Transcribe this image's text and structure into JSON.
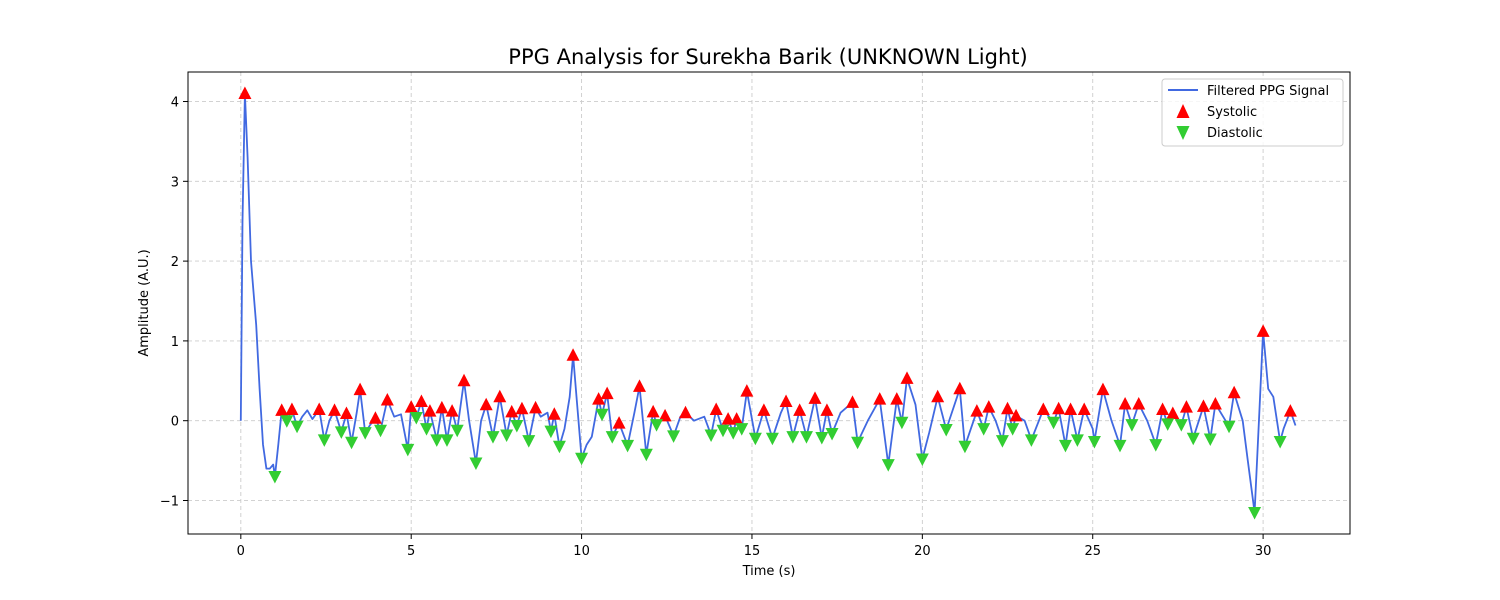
{
  "chart_data": {
    "type": "line",
    "title": "PPG Analysis for Surekha Barik (UNKNOWN Light)",
    "xlabel": "Time (s)",
    "ylabel": "Amplitude (A.U.)",
    "xlim": [
      -1.55,
      32.55
    ],
    "ylim": [
      -1.42,
      4.37
    ],
    "xticks": [
      0,
      5,
      10,
      15,
      20,
      25,
      30
    ],
    "yticks": [
      -1,
      0,
      1,
      2,
      3,
      4
    ],
    "ytick_labels": [
      "−1",
      "0",
      "1",
      "2",
      "3",
      "4"
    ],
    "grid": true,
    "legend_position": "top-right",
    "colors": {
      "signal": "#4169e1",
      "systolic": "#ff0000",
      "diastolic": "#32cd32",
      "grid": "#cccccc"
    },
    "series": [
      {
        "name": "Filtered PPG Signal",
        "kind": "line",
        "points": [
          [
            0.0,
            0.0
          ],
          [
            0.05,
            2.5
          ],
          [
            0.12,
            4.1
          ],
          [
            0.2,
            3.3
          ],
          [
            0.3,
            2.0
          ],
          [
            0.45,
            1.2
          ],
          [
            0.55,
            0.4
          ],
          [
            0.65,
            -0.3
          ],
          [
            0.75,
            -0.6
          ],
          [
            0.85,
            -0.6
          ],
          [
            0.95,
            -0.55
          ],
          [
            1.0,
            -0.7
          ],
          [
            1.1,
            -0.3
          ],
          [
            1.2,
            0.13
          ],
          [
            1.35,
            0.0
          ],
          [
            1.5,
            0.14
          ],
          [
            1.65,
            -0.07
          ],
          [
            1.8,
            0.05
          ],
          [
            1.95,
            0.13
          ],
          [
            2.1,
            0.02
          ],
          [
            2.3,
            0.14
          ],
          [
            2.45,
            -0.24
          ],
          [
            2.6,
            0.0
          ],
          [
            2.75,
            0.13
          ],
          [
            2.95,
            -0.14
          ],
          [
            3.1,
            0.09
          ],
          [
            3.25,
            -0.27
          ],
          [
            3.4,
            0.1
          ],
          [
            3.5,
            0.39
          ],
          [
            3.65,
            -0.15
          ],
          [
            3.8,
            -0.05
          ],
          [
            3.95,
            0.03
          ],
          [
            4.1,
            -0.12
          ],
          [
            4.3,
            0.26
          ],
          [
            4.5,
            0.05
          ],
          [
            4.7,
            0.08
          ],
          [
            4.9,
            -0.36
          ],
          [
            5.0,
            0.17
          ],
          [
            5.15,
            0.04
          ],
          [
            5.3,
            0.24
          ],
          [
            5.45,
            -0.1
          ],
          [
            5.55,
            0.12
          ],
          [
            5.75,
            -0.24
          ],
          [
            5.9,
            0.16
          ],
          [
            6.05,
            -0.24
          ],
          [
            6.2,
            0.12
          ],
          [
            6.35,
            -0.12
          ],
          [
            6.55,
            0.5
          ],
          [
            6.7,
            0.0
          ],
          [
            6.9,
            -0.53
          ],
          [
            7.05,
            0.0
          ],
          [
            7.2,
            0.2
          ],
          [
            7.4,
            -0.2
          ],
          [
            7.6,
            0.3
          ],
          [
            7.8,
            -0.18
          ],
          [
            7.95,
            0.11
          ],
          [
            8.1,
            -0.06
          ],
          [
            8.25,
            0.15
          ],
          [
            8.45,
            -0.25
          ],
          [
            8.65,
            0.16
          ],
          [
            8.8,
            0.05
          ],
          [
            9.0,
            0.1
          ],
          [
            9.1,
            -0.13
          ],
          [
            9.2,
            0.08
          ],
          [
            9.35,
            -0.32
          ],
          [
            9.5,
            -0.1
          ],
          [
            9.65,
            0.3
          ],
          [
            9.75,
            0.82
          ],
          [
            9.85,
            0.3
          ],
          [
            10.0,
            -0.47
          ],
          [
            10.15,
            -0.3
          ],
          [
            10.3,
            -0.2
          ],
          [
            10.5,
            0.27
          ],
          [
            10.6,
            0.08
          ],
          [
            10.75,
            0.34
          ],
          [
            10.9,
            -0.2
          ],
          [
            11.1,
            -0.03
          ],
          [
            11.35,
            -0.31
          ],
          [
            11.55,
            0.1
          ],
          [
            11.7,
            0.43
          ],
          [
            11.9,
            -0.42
          ],
          [
            12.1,
            0.11
          ],
          [
            12.2,
            -0.05
          ],
          [
            12.45,
            0.06
          ],
          [
            12.7,
            -0.19
          ],
          [
            12.9,
            0.05
          ],
          [
            13.05,
            0.1
          ],
          [
            13.3,
            0.0
          ],
          [
            13.6,
            0.05
          ],
          [
            13.8,
            -0.18
          ],
          [
            13.95,
            0.14
          ],
          [
            14.15,
            -0.12
          ],
          [
            14.3,
            0.02
          ],
          [
            14.45,
            -0.15
          ],
          [
            14.55,
            0.02
          ],
          [
            14.7,
            -0.1
          ],
          [
            14.85,
            0.37
          ],
          [
            15.1,
            -0.22
          ],
          [
            15.35,
            0.13
          ],
          [
            15.6,
            -0.22
          ],
          [
            15.85,
            0.1
          ],
          [
            16.0,
            0.24
          ],
          [
            16.2,
            -0.2
          ],
          [
            16.4,
            0.13
          ],
          [
            16.6,
            -0.2
          ],
          [
            16.85,
            0.28
          ],
          [
            17.05,
            -0.21
          ],
          [
            17.2,
            0.13
          ],
          [
            17.35,
            -0.16
          ],
          [
            17.6,
            0.1
          ],
          [
            17.95,
            0.23
          ],
          [
            18.1,
            -0.27
          ],
          [
            18.4,
            0.0
          ],
          [
            18.75,
            0.27
          ],
          [
            19.0,
            -0.55
          ],
          [
            19.25,
            0.27
          ],
          [
            19.4,
            -0.02
          ],
          [
            19.55,
            0.53
          ],
          [
            19.8,
            0.2
          ],
          [
            20.0,
            -0.48
          ],
          [
            20.2,
            -0.15
          ],
          [
            20.45,
            0.3
          ],
          [
            20.7,
            -0.11
          ],
          [
            21.1,
            0.4
          ],
          [
            21.25,
            -0.32
          ],
          [
            21.6,
            0.12
          ],
          [
            21.8,
            -0.1
          ],
          [
            21.95,
            0.17
          ],
          [
            22.15,
            0.0
          ],
          [
            22.35,
            -0.25
          ],
          [
            22.5,
            0.15
          ],
          [
            22.65,
            -0.1
          ],
          [
            22.75,
            0.06
          ],
          [
            23.0,
            0.0
          ],
          [
            23.2,
            -0.24
          ],
          [
            23.55,
            0.14
          ],
          [
            23.85,
            -0.02
          ],
          [
            24.0,
            0.15
          ],
          [
            24.2,
            -0.31
          ],
          [
            24.35,
            0.14
          ],
          [
            24.55,
            -0.24
          ],
          [
            24.75,
            0.14
          ],
          [
            25.0,
            -0.1
          ],
          [
            25.05,
            -0.26
          ],
          [
            25.3,
            0.39
          ],
          [
            25.55,
            0.0
          ],
          [
            25.8,
            -0.31
          ],
          [
            25.95,
            0.21
          ],
          [
            26.15,
            -0.05
          ],
          [
            26.35,
            0.21
          ],
          [
            26.6,
            0.0
          ],
          [
            26.85,
            -0.3
          ],
          [
            27.05,
            0.14
          ],
          [
            27.2,
            -0.04
          ],
          [
            27.35,
            0.09
          ],
          [
            27.6,
            -0.05
          ],
          [
            27.75,
            0.17
          ],
          [
            27.95,
            -0.22
          ],
          [
            28.25,
            0.18
          ],
          [
            28.45,
            -0.23
          ],
          [
            28.6,
            0.21
          ],
          [
            29.0,
            -0.07
          ],
          [
            29.15,
            0.35
          ],
          [
            29.4,
            0.0
          ],
          [
            29.55,
            -0.5
          ],
          [
            29.75,
            -1.15
          ],
          [
            29.9,
            0.2
          ],
          [
            30.0,
            1.12
          ],
          [
            30.15,
            0.4
          ],
          [
            30.3,
            0.3
          ],
          [
            30.5,
            -0.26
          ],
          [
            30.6,
            -0.1
          ],
          [
            30.8,
            0.12
          ],
          [
            30.95,
            -0.06
          ]
        ]
      },
      {
        "name": "Systolic",
        "kind": "marker-up",
        "points": [
          [
            0.12,
            4.1
          ],
          [
            1.2,
            0.13
          ],
          [
            1.5,
            0.14
          ],
          [
            2.3,
            0.14
          ],
          [
            2.75,
            0.13
          ],
          [
            3.1,
            0.09
          ],
          [
            3.5,
            0.39
          ],
          [
            3.95,
            0.03
          ],
          [
            4.3,
            0.26
          ],
          [
            5.0,
            0.17
          ],
          [
            5.3,
            0.24
          ],
          [
            5.55,
            0.12
          ],
          [
            5.9,
            0.16
          ],
          [
            6.2,
            0.12
          ],
          [
            6.55,
            0.5
          ],
          [
            7.2,
            0.2
          ],
          [
            7.6,
            0.3
          ],
          [
            7.95,
            0.11
          ],
          [
            8.25,
            0.15
          ],
          [
            8.65,
            0.16
          ],
          [
            9.2,
            0.08
          ],
          [
            9.75,
            0.82
          ],
          [
            10.5,
            0.27
          ],
          [
            10.75,
            0.34
          ],
          [
            11.1,
            -0.03
          ],
          [
            11.7,
            0.43
          ],
          [
            12.1,
            0.11
          ],
          [
            12.45,
            0.06
          ],
          [
            13.05,
            0.1
          ],
          [
            13.95,
            0.14
          ],
          [
            14.3,
            0.02
          ],
          [
            14.55,
            0.02
          ],
          [
            14.85,
            0.37
          ],
          [
            15.35,
            0.13
          ],
          [
            16.0,
            0.24
          ],
          [
            16.4,
            0.13
          ],
          [
            16.85,
            0.28
          ],
          [
            17.2,
            0.13
          ],
          [
            17.95,
            0.23
          ],
          [
            18.75,
            0.27
          ],
          [
            19.25,
            0.27
          ],
          [
            19.55,
            0.53
          ],
          [
            20.45,
            0.3
          ],
          [
            21.1,
            0.4
          ],
          [
            21.6,
            0.12
          ],
          [
            21.95,
            0.17
          ],
          [
            22.5,
            0.15
          ],
          [
            22.75,
            0.06
          ],
          [
            23.55,
            0.14
          ],
          [
            24.0,
            0.15
          ],
          [
            24.35,
            0.14
          ],
          [
            24.75,
            0.14
          ],
          [
            25.3,
            0.39
          ],
          [
            25.95,
            0.21
          ],
          [
            26.35,
            0.21
          ],
          [
            27.05,
            0.14
          ],
          [
            27.35,
            0.09
          ],
          [
            27.75,
            0.17
          ],
          [
            28.25,
            0.18
          ],
          [
            28.6,
            0.21
          ],
          [
            29.15,
            0.35
          ],
          [
            30.0,
            1.12
          ],
          [
            30.8,
            0.12
          ]
        ]
      },
      {
        "name": "Diastolic",
        "kind": "marker-down",
        "points": [
          [
            1.0,
            -0.7
          ],
          [
            1.35,
            0.0
          ],
          [
            1.65,
            -0.07
          ],
          [
            2.45,
            -0.24
          ],
          [
            2.95,
            -0.14
          ],
          [
            3.25,
            -0.27
          ],
          [
            3.65,
            -0.15
          ],
          [
            4.1,
            -0.12
          ],
          [
            4.9,
            -0.36
          ],
          [
            5.15,
            0.04
          ],
          [
            5.45,
            -0.1
          ],
          [
            5.75,
            -0.24
          ],
          [
            6.05,
            -0.24
          ],
          [
            6.35,
            -0.12
          ],
          [
            6.9,
            -0.53
          ],
          [
            7.4,
            -0.2
          ],
          [
            7.8,
            -0.18
          ],
          [
            8.1,
            -0.06
          ],
          [
            8.45,
            -0.25
          ],
          [
            9.1,
            -0.13
          ],
          [
            9.35,
            -0.32
          ],
          [
            10.0,
            -0.47
          ],
          [
            10.6,
            0.08
          ],
          [
            10.9,
            -0.2
          ],
          [
            11.35,
            -0.31
          ],
          [
            11.9,
            -0.42
          ],
          [
            12.2,
            -0.05
          ],
          [
            12.7,
            -0.19
          ],
          [
            13.8,
            -0.18
          ],
          [
            14.15,
            -0.12
          ],
          [
            14.45,
            -0.15
          ],
          [
            14.7,
            -0.1
          ],
          [
            15.1,
            -0.22
          ],
          [
            15.6,
            -0.22
          ],
          [
            16.2,
            -0.2
          ],
          [
            16.6,
            -0.2
          ],
          [
            17.05,
            -0.21
          ],
          [
            17.35,
            -0.16
          ],
          [
            18.1,
            -0.27
          ],
          [
            19.0,
            -0.55
          ],
          [
            19.4,
            -0.02
          ],
          [
            20.0,
            -0.48
          ],
          [
            20.7,
            -0.11
          ],
          [
            21.25,
            -0.32
          ],
          [
            21.8,
            -0.1
          ],
          [
            22.35,
            -0.25
          ],
          [
            22.65,
            -0.1
          ],
          [
            23.2,
            -0.24
          ],
          [
            23.85,
            -0.02
          ],
          [
            24.2,
            -0.31
          ],
          [
            24.55,
            -0.24
          ],
          [
            25.05,
            -0.26
          ],
          [
            25.8,
            -0.31
          ],
          [
            26.15,
            -0.05
          ],
          [
            26.85,
            -0.3
          ],
          [
            27.2,
            -0.04
          ],
          [
            27.6,
            -0.05
          ],
          [
            27.95,
            -0.22
          ],
          [
            28.45,
            -0.23
          ],
          [
            29.0,
            -0.07
          ],
          [
            29.75,
            -1.15
          ],
          [
            30.5,
            -0.26
          ]
        ]
      }
    ]
  }
}
